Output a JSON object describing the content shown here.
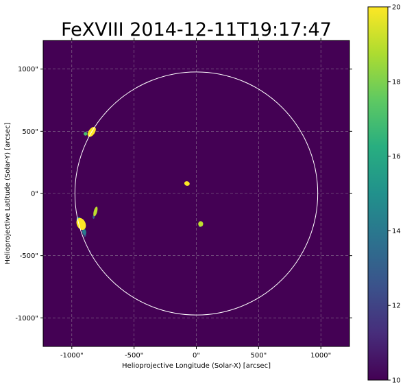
{
  "chart_data": {
    "type": "heatmap",
    "title": "FeXVIII 2014-12-11T19:17:47",
    "xlabel": "Helioprojective Longitude (Solar-X) [arcsec]",
    "ylabel": "Helioprojective Latitude (Solar-Y) [arcsec]",
    "xlim": [
      -1230,
      1230
    ],
    "ylim": [
      -1230,
      1230
    ],
    "x_ticks": [
      -1000,
      -500,
      0,
      500,
      1000
    ],
    "y_ticks": [
      -1000,
      -500,
      0,
      500,
      1000
    ],
    "x_tick_labels": [
      "-1000\"",
      "-500\"",
      "0\"",
      "500\"",
      "1000\""
    ],
    "y_tick_labels": [
      "-1000\"",
      "-500\"",
      "0\"",
      "500\"",
      "1000\""
    ],
    "grid": true,
    "solar_limb_radius_arcsec": 975,
    "colorbar": {
      "min": 10,
      "max": 20,
      "ticks": [
        10,
        12,
        14,
        16,
        18,
        20
      ],
      "tick_labels": [
        "10",
        "12",
        "14",
        "16",
        "18",
        "20"
      ],
      "colormap": "viridis"
    },
    "background_color": "#440154",
    "limb_color": "#ffffff",
    "bright_regions": [
      {
        "x": -840,
        "y": 495,
        "rx": 25,
        "ry": 45,
        "rot": 35,
        "value": 20
      },
      {
        "x": -890,
        "y": 480,
        "rx": 15,
        "ry": 15,
        "rot": 0,
        "value": 17
      },
      {
        "x": -75,
        "y": 80,
        "rx": 22,
        "ry": 18,
        "rot": 20,
        "value": 20
      },
      {
        "x": 35,
        "y": -245,
        "rx": 20,
        "ry": 22,
        "rot": 0,
        "value": 19
      },
      {
        "x": 30,
        "y": -260,
        "rx": 10,
        "ry": 10,
        "rot": 0,
        "value": 14
      },
      {
        "x": -810,
        "y": -145,
        "rx": 14,
        "ry": 40,
        "rot": 15,
        "value": 19
      },
      {
        "x": -825,
        "y": -190,
        "rx": 8,
        "ry": 14,
        "rot": 0,
        "value": 13
      },
      {
        "x": -925,
        "y": -245,
        "rx": 35,
        "ry": 50,
        "rot": -25,
        "value": 20
      },
      {
        "x": -945,
        "y": -210,
        "rx": 18,
        "ry": 22,
        "rot": 0,
        "value": 14
      },
      {
        "x": -900,
        "y": -310,
        "rx": 16,
        "ry": 26,
        "rot": -10,
        "value": 14
      },
      {
        "x": -895,
        "y": -335,
        "rx": 10,
        "ry": 14,
        "rot": 0,
        "value": 12
      },
      {
        "x": -855,
        "y": -470,
        "rx": 6,
        "ry": 12,
        "rot": 0,
        "value": 11
      }
    ]
  }
}
